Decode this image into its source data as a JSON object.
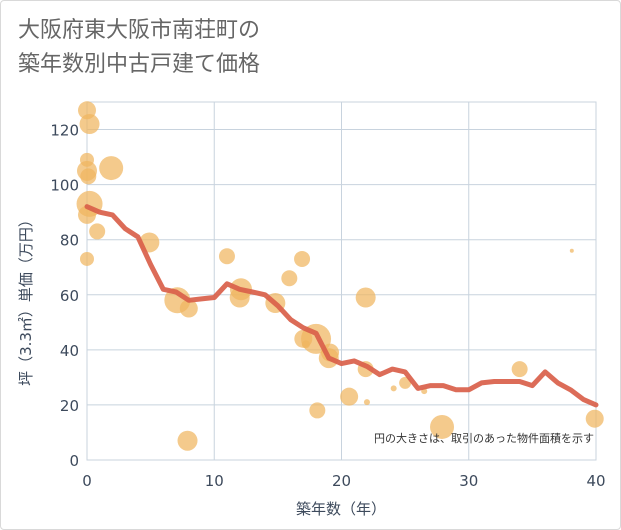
{
  "title_lines": [
    "大阪府東大阪市南荘町の",
    "築年数別中古戸建て価格"
  ],
  "chart_data": {
    "type": "scatter",
    "title": "大阪府東大阪市南荘町の築年数別中古戸建て価格",
    "xlabel": "築年数（年）",
    "ylabel": "坪（3.3㎡）単価（万円）",
    "xlim": [
      0,
      40
    ],
    "ylim": [
      0,
      130
    ],
    "x_ticks": [
      0,
      10,
      20,
      30,
      40
    ],
    "y_ticks": [
      0,
      20,
      40,
      60,
      80,
      100,
      120
    ],
    "grid": true,
    "note": "円の大きさは、取引のあった物件面積を示す",
    "colors": {
      "bubble": "#f0b660",
      "line": "#d9604a",
      "grid": "#c8d3de",
      "text": "#3d4a5c"
    },
    "bubbles": [
      {
        "x": 0,
        "y": 127,
        "size": 9
      },
      {
        "x": 0.2,
        "y": 122,
        "size": 10
      },
      {
        "x": 0,
        "y": 109,
        "size": 7
      },
      {
        "x": 0,
        "y": 105,
        "size": 10
      },
      {
        "x": 0.1,
        "y": 103,
        "size": 8
      },
      {
        "x": 0.2,
        "y": 93,
        "size": 13
      },
      {
        "x": 0,
        "y": 89,
        "size": 9
      },
      {
        "x": 0.8,
        "y": 83,
        "size": 8
      },
      {
        "x": 0,
        "y": 73,
        "size": 7
      },
      {
        "x": 1.9,
        "y": 106,
        "size": 12
      },
      {
        "x": 4.9,
        "y": 79,
        "size": 10
      },
      {
        "x": 7.1,
        "y": 58,
        "size": 13
      },
      {
        "x": 8,
        "y": 55,
        "size": 9
      },
      {
        "x": 7.9,
        "y": 7,
        "size": 10
      },
      {
        "x": 11,
        "y": 74,
        "size": 8
      },
      {
        "x": 12,
        "y": 59,
        "size": 10
      },
      {
        "x": 12.1,
        "y": 62,
        "size": 11
      },
      {
        "x": 14.8,
        "y": 57,
        "size": 10
      },
      {
        "x": 15.9,
        "y": 66,
        "size": 8
      },
      {
        "x": 16.9,
        "y": 73,
        "size": 8
      },
      {
        "x": 17,
        "y": 44,
        "size": 9
      },
      {
        "x": 18,
        "y": 44,
        "size": 15
      },
      {
        "x": 17.2,
        "y": 42,
        "size": 4
      },
      {
        "x": 19,
        "y": 37,
        "size": 10
      },
      {
        "x": 19.1,
        "y": 39,
        "size": 9
      },
      {
        "x": 18.1,
        "y": 18,
        "size": 8
      },
      {
        "x": 20.6,
        "y": 23,
        "size": 9
      },
      {
        "x": 21.9,
        "y": 59,
        "size": 10
      },
      {
        "x": 21.9,
        "y": 33,
        "size": 8
      },
      {
        "x": 22,
        "y": 21,
        "size": 3
      },
      {
        "x": 24.1,
        "y": 26,
        "size": 3
      },
      {
        "x": 25,
        "y": 28,
        "size": 6
      },
      {
        "x": 26.5,
        "y": 25,
        "size": 3
      },
      {
        "x": 27.9,
        "y": 12,
        "size": 12
      },
      {
        "x": 34,
        "y": 33,
        "size": 8
      },
      {
        "x": 38.1,
        "y": 76,
        "size": 2
      },
      {
        "x": 39.9,
        "y": 15,
        "size": 9
      }
    ],
    "trend": {
      "x": [
        0,
        1,
        2,
        3,
        4,
        5,
        6,
        7,
        8,
        9,
        10,
        11,
        12,
        13,
        14,
        15,
        16,
        17,
        18,
        19,
        20,
        21,
        22,
        23,
        24,
        25,
        26,
        27,
        28,
        29,
        30,
        31,
        32,
        33,
        34,
        35,
        36,
        37,
        38,
        39,
        40
      ],
      "y": [
        92,
        90,
        89,
        84,
        81,
        71,
        62,
        61,
        58,
        58.5,
        59,
        64,
        62,
        61,
        60,
        56,
        51,
        48,
        46,
        37,
        35,
        36,
        34,
        31,
        33,
        32,
        26,
        27,
        27,
        25.5,
        25.5,
        28,
        28.5,
        28.5,
        28.5,
        27,
        32,
        28,
        25.5,
        22,
        20
      ]
    }
  }
}
